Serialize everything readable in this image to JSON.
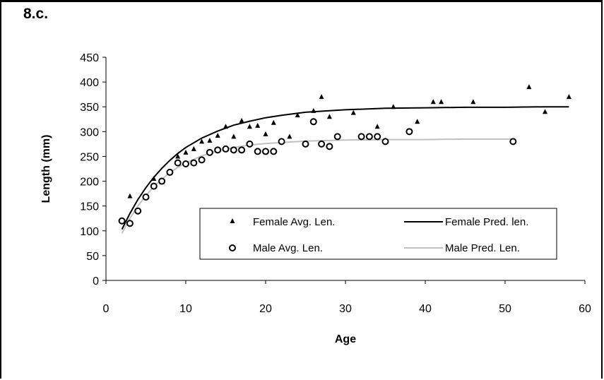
{
  "panel_label": "8.c.",
  "chart_data": {
    "type": "scatter",
    "title": "",
    "xlabel": "Age",
    "ylabel": "Length (mm)",
    "xlim": [
      0,
      60
    ],
    "ylim": [
      0,
      450
    ],
    "xticks": [
      0,
      10,
      20,
      30,
      40,
      50,
      60
    ],
    "yticks": [
      0,
      50,
      100,
      150,
      200,
      250,
      300,
      350,
      400,
      450
    ],
    "grid": false,
    "legend_position": "bottom-right",
    "colors": {
      "female": "#000000",
      "male": "#000000",
      "female_line": "#000000",
      "male_line": "#c0c0c0"
    },
    "series": [
      {
        "name": "Female Avg. Len.",
        "kind": "scatter",
        "marker": "triangle",
        "points": [
          [
            3,
            170
          ],
          [
            6,
            205
          ],
          [
            7,
            198
          ],
          [
            9,
            250
          ],
          [
            10,
            258
          ],
          [
            11,
            265
          ],
          [
            12,
            280
          ],
          [
            13,
            282
          ],
          [
            14,
            292
          ],
          [
            15,
            310
          ],
          [
            16,
            290
          ],
          [
            17,
            322
          ],
          [
            18,
            310
          ],
          [
            19,
            312
          ],
          [
            20,
            295
          ],
          [
            21,
            318
          ],
          [
            23,
            290
          ],
          [
            24,
            333
          ],
          [
            26,
            342
          ],
          [
            27,
            370
          ],
          [
            28,
            330
          ],
          [
            31,
            338
          ],
          [
            34,
            310
          ],
          [
            36,
            350
          ],
          [
            39,
            320
          ],
          [
            41,
            360
          ],
          [
            42,
            360
          ],
          [
            46,
            360
          ],
          [
            53,
            390
          ],
          [
            55,
            340
          ],
          [
            58,
            370
          ]
        ]
      },
      {
        "name": "Female Pred. len.",
        "kind": "line",
        "color": "#000000",
        "points": [
          [
            2,
            103
          ],
          [
            3,
            135
          ],
          [
            4,
            163
          ],
          [
            5,
            187
          ],
          [
            6,
            208
          ],
          [
            7,
            226
          ],
          [
            8,
            242
          ],
          [
            9,
            256
          ],
          [
            10,
            268
          ],
          [
            12,
            287
          ],
          [
            14,
            301
          ],
          [
            16,
            313
          ],
          [
            18,
            321
          ],
          [
            20,
            328
          ],
          [
            22,
            333
          ],
          [
            25,
            339
          ],
          [
            28,
            342
          ],
          [
            30,
            344
          ],
          [
            35,
            347
          ],
          [
            40,
            348
          ],
          [
            45,
            349
          ],
          [
            50,
            349
          ],
          [
            55,
            350
          ],
          [
            58,
            350
          ]
        ]
      },
      {
        "name": "Male Avg. Len.",
        "kind": "scatter",
        "marker": "circle",
        "points": [
          [
            2,
            120
          ],
          [
            3,
            115
          ],
          [
            4,
            140
          ],
          [
            5,
            168
          ],
          [
            6,
            190
          ],
          [
            7,
            200
          ],
          [
            8,
            218
          ],
          [
            9,
            237
          ],
          [
            10,
            235
          ],
          [
            11,
            237
          ],
          [
            12,
            243
          ],
          [
            13,
            258
          ],
          [
            14,
            263
          ],
          [
            15,
            265
          ],
          [
            16,
            263
          ],
          [
            17,
            263
          ],
          [
            18,
            275
          ],
          [
            19,
            260
          ],
          [
            20,
            260
          ],
          [
            21,
            260
          ],
          [
            22,
            280
          ],
          [
            25,
            275
          ],
          [
            26,
            320
          ],
          [
            27,
            275
          ],
          [
            28,
            270
          ],
          [
            29,
            290
          ],
          [
            32,
            290
          ],
          [
            33,
            290
          ],
          [
            34,
            290
          ],
          [
            35,
            280
          ],
          [
            38,
            300
          ],
          [
            51,
            280
          ]
        ]
      },
      {
        "name": "Male Pred. Len.",
        "kind": "line",
        "color": "#c0c0c0",
        "points": [
          [
            2,
            95
          ],
          [
            3,
            125
          ],
          [
            4,
            150
          ],
          [
            5,
            171
          ],
          [
            6,
            189
          ],
          [
            7,
            204
          ],
          [
            8,
            217
          ],
          [
            9,
            228
          ],
          [
            10,
            237
          ],
          [
            12,
            251
          ],
          [
            14,
            261
          ],
          [
            16,
            268
          ],
          [
            18,
            273
          ],
          [
            20,
            276
          ],
          [
            25,
            281
          ],
          [
            30,
            283
          ],
          [
            35,
            284
          ],
          [
            40,
            284
          ],
          [
            45,
            285
          ],
          [
            51,
            285
          ]
        ]
      }
    ]
  }
}
